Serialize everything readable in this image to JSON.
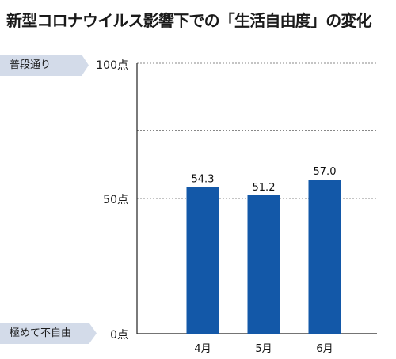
{
  "title": "新型コロナウイルス影響下での「生活自由度」の変化",
  "labels": {
    "top": "普段通り",
    "bottom": "極めて不自由"
  },
  "colors": {
    "bar": "#1358a8",
    "label_bg": "#d3dbe9",
    "grid": "#888888"
  },
  "chart_data": {
    "type": "bar",
    "title": "新型コロナウイルス影響下での「生活自由度」の変化",
    "categories": [
      "4月",
      "5月",
      "6月"
    ],
    "values": [
      54.3,
      51.2,
      57.0
    ],
    "value_labels": [
      "54.3",
      "51.2",
      "57.0"
    ],
    "ytick_labels": [
      "100点",
      "50点",
      "0点"
    ],
    "ylim": [
      0,
      100
    ],
    "grid": true,
    "xlabel": "",
    "ylabel": ""
  }
}
